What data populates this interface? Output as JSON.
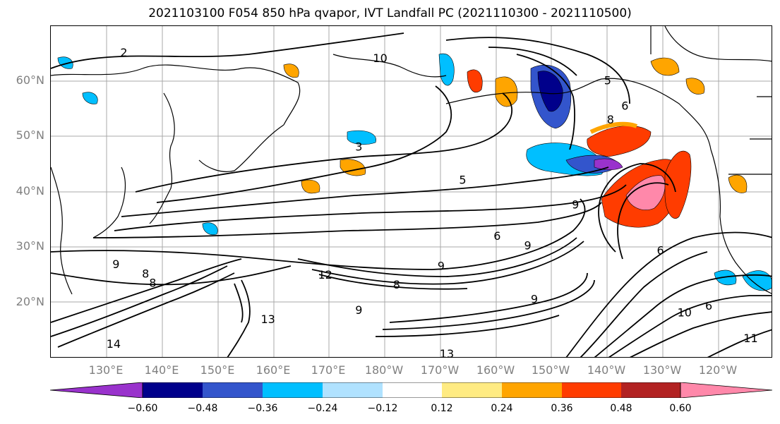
{
  "title": "2021103100 F054 850 hPa qvapor, IVT Landfall PC (2021110300 - 2021110500)",
  "lat_labels": [
    "60°N",
    "50°N",
    "40°N",
    "30°N",
    "20°N"
  ],
  "lon_labels": [
    "130°E",
    "140°E",
    "150°E",
    "160°E",
    "170°E",
    "180°W",
    "170°W",
    "160°W",
    "150°W",
    "140°W",
    "130°W",
    "120°W"
  ],
  "contour_labels": [
    {
      "text": "2",
      "lon": 132.5,
      "lat": 64.5
    },
    {
      "text": "3",
      "lon": 174.8,
      "lat": 47.5
    },
    {
      "text": "5",
      "lon": 193.5,
      "lat": 41.5
    },
    {
      "text": "6",
      "lon": 222.7,
      "lat": 54.9
    },
    {
      "text": "8",
      "lon": 220.1,
      "lat": 52.4
    },
    {
      "text": "5",
      "lon": 219.6,
      "lat": 59.5
    },
    {
      "text": "6",
      "lon": 199.7,
      "lat": 31.4
    },
    {
      "text": "9",
      "lon": 205.2,
      "lat": 29.7
    },
    {
      "text": "6",
      "lon": 229.1,
      "lat": 28.8
    },
    {
      "text": "9",
      "lon": 213.8,
      "lat": 37.1
    },
    {
      "text": "12",
      "lon": 168.1,
      "lat": 24.4
    },
    {
      "text": "8",
      "lon": 137.7,
      "lat": 22.9
    },
    {
      "text": "8",
      "lon": 136.4,
      "lat": 24.6
    },
    {
      "text": "9",
      "lon": 131.1,
      "lat": 26.3
    },
    {
      "text": "13",
      "lon": 157.8,
      "lat": 16.4
    },
    {
      "text": "14",
      "lon": 130.0,
      "lat": 11.9
    },
    {
      "text": "9",
      "lon": 174.8,
      "lat": 18.0
    },
    {
      "text": "8",
      "lon": 181.6,
      "lat": 22.6
    },
    {
      "text": "9",
      "lon": 189.6,
      "lat": 26.0
    },
    {
      "text": "13",
      "lon": 190.0,
      "lat": 10.1
    },
    {
      "text": "9",
      "lon": 206.4,
      "lat": 20.0
    },
    {
      "text": "10",
      "lon": 232.8,
      "lat": 17.6
    },
    {
      "text": "6",
      "lon": 237.8,
      "lat": 18.8
    },
    {
      "text": "11",
      "lon": 244.7,
      "lat": 12.9
    },
    {
      "text": "10",
      "lon": 178.0,
      "lat": 63.5
    }
  ],
  "colorbar": {
    "tick_labels": [
      "−0.60",
      "−0.48",
      "−0.36",
      "−0.24",
      "−0.12",
      "0.12",
      "0.24",
      "0.36",
      "0.48",
      "0.60"
    ],
    "colors": [
      "#9932cc",
      "#00008b",
      "#3355cc",
      "#00bfff",
      "#b0e2ff",
      "#ffffff",
      "#ffeb82",
      "#ffa500",
      "#ff3c00",
      "#b22222",
      "#ff88aa"
    ]
  }
}
